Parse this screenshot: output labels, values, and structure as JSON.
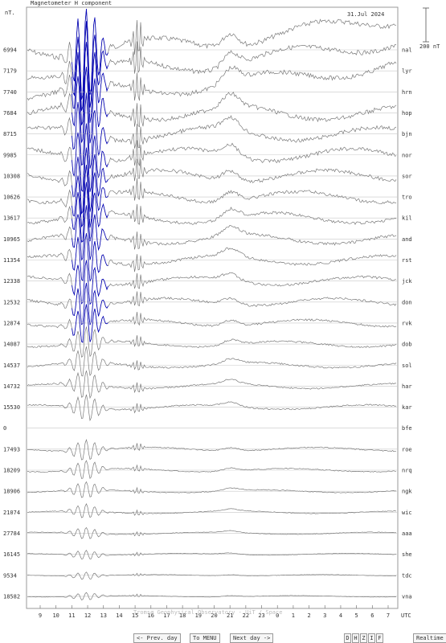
{
  "header": {
    "title": "Magnetometer H component",
    "unit": "nT.",
    "date": "31.Jul 2024",
    "scale": "200 nT"
  },
  "footer": {
    "credit": "Tromsø Geophysical Observatory - UiT / Space",
    "prev_label": "<- Prev. day",
    "menu_label": "To MENU",
    "next_label": "Next day ->",
    "components": [
      "D",
      "H",
      "Z",
      "I",
      "F"
    ],
    "realtime_label": "Realtime"
  },
  "chart_data": {
    "type": "line",
    "title": "Magnetometer H component",
    "xlabel": "UTC",
    "x_ticks": [
      "9",
      "10",
      "11",
      "12",
      "13",
      "14",
      "15",
      "16",
      "17",
      "18",
      "19",
      "20",
      "21",
      "22",
      "23",
      "0",
      "1",
      "2",
      "3",
      "4",
      "5",
      "6",
      "7"
    ],
    "stations": [
      {
        "code": "nal",
        "baseline": "6994"
      },
      {
        "code": "lyr",
        "baseline": "7179"
      },
      {
        "code": "hrn",
        "baseline": "7740"
      },
      {
        "code": "hop",
        "baseline": "7684"
      },
      {
        "code": "bjn",
        "baseline": "8715"
      },
      {
        "code": "nor",
        "baseline": "9985"
      },
      {
        "code": "sor",
        "baseline": "10308"
      },
      {
        "code": "tro",
        "baseline": "10626"
      },
      {
        "code": "kil",
        "baseline": "13617"
      },
      {
        "code": "and",
        "baseline": "10965"
      },
      {
        "code": "rst",
        "baseline": "11354"
      },
      {
        "code": "jck",
        "baseline": "12338"
      },
      {
        "code": "don",
        "baseline": "12532"
      },
      {
        "code": "rvk",
        "baseline": "12874"
      },
      {
        "code": "dob",
        "baseline": "14087"
      },
      {
        "code": "sol",
        "baseline": "14537"
      },
      {
        "code": "har",
        "baseline": "14732"
      },
      {
        "code": "kar",
        "baseline": "15530"
      },
      {
        "code": "bfe",
        "baseline": "0"
      },
      {
        "code": "roe",
        "baseline": "17493"
      },
      {
        "code": "nrq",
        "baseline": "18209"
      },
      {
        "code": "ngk",
        "baseline": "18906"
      },
      {
        "code": "wic",
        "baseline": "21074"
      },
      {
        "code": "aaa",
        "baseline": "27784"
      },
      {
        "code": "she",
        "baseline": "16145"
      },
      {
        "code": "tdc",
        "baseline": "9534"
      },
      {
        "code": "vna",
        "baseline": "18582"
      }
    ],
    "colors": {
      "line": "#7a7a7a",
      "active": "#0000bb",
      "frame": "#9a9a9a"
    }
  }
}
